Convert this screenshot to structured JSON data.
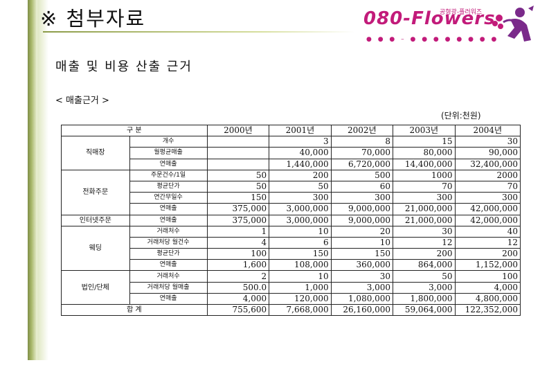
{
  "page": {
    "title": "※ 첨부자료",
    "subtitle": "매출 및 비용 산출 근거",
    "section_label": "< 매출근거 >",
    "unit_note": "(단위:천원)"
  },
  "logo": {
    "text": "080-Flowers",
    "tagline": "공형광-플러워즈",
    "dots": "● ● ● – ● ● ● ● ● ● ● ●",
    "accent": "#c21b7a"
  },
  "table": {
    "header_label": "구    분",
    "years": [
      "2000년",
      "2001년",
      "2002년",
      "2003년",
      "2004년"
    ],
    "groups": [
      {
        "category": "직매장",
        "rows": [
          {
            "item": "개수",
            "values": [
              "",
              "3",
              "8",
              "15",
              "30"
            ]
          },
          {
            "item": "월평균매출",
            "values": [
              "",
              "40,000",
              "70,000",
              "80,000",
              "90,000"
            ]
          },
          {
            "item": "연매출",
            "values": [
              "",
              "1,440,000",
              "6,720,000",
              "14,400,000",
              "32,400,000"
            ]
          }
        ]
      },
      {
        "category": "전화주문",
        "rows": [
          {
            "item": "주문건수/1일",
            "values": [
              "50",
              "200",
              "500",
              "1000",
              "2000"
            ]
          },
          {
            "item": "평균단가",
            "values": [
              "50",
              "50",
              "60",
              "70",
              "70"
            ]
          },
          {
            "item": "연간무일수",
            "values": [
              "150",
              "300",
              "300",
              "300",
              "300"
            ]
          },
          {
            "item": "연매출",
            "values": [
              "375,000",
              "3,000,000",
              "9,000,000",
              "21,000,000",
              "42,000,000"
            ]
          }
        ]
      },
      {
        "category": "인터넷주문",
        "rows": [
          {
            "item": "연매출",
            "values": [
              "375,000",
              "3,000,000",
              "9,000,000",
              "21,000,000",
              "42,000,000"
            ]
          }
        ]
      },
      {
        "category": "웨딩",
        "rows": [
          {
            "item": "거래처수",
            "values": [
              "1",
              "10",
              "20",
              "30",
              "40"
            ]
          },
          {
            "item": "거래처당 월건수",
            "values": [
              "4",
              "6",
              "10",
              "12",
              "12"
            ]
          },
          {
            "item": "평균단가",
            "values": [
              "100",
              "150",
              "150",
              "200",
              "200"
            ]
          },
          {
            "item": "연매출",
            "values": [
              "1,600",
              "108,000",
              "360,000",
              "864,000",
              "1,152,000"
            ]
          }
        ]
      },
      {
        "category": "법인/단체",
        "rows": [
          {
            "item": "거래처수",
            "values": [
              "2",
              "10",
              "30",
              "50",
              "100"
            ]
          },
          {
            "item": "거래처당 월매출",
            "values": [
              "500.0",
              "1,000",
              "3,000",
              "3,000",
              "4,000"
            ]
          },
          {
            "item": "연매출",
            "values": [
              "4,000",
              "120,000",
              "1,080,000",
              "1,800,000",
              "4,800,000"
            ]
          }
        ]
      }
    ],
    "total_label": "합    계",
    "total_values": [
      "755,600",
      "7,668,000",
      "26,160,000",
      "59,064,000",
      "122,352,000"
    ]
  }
}
